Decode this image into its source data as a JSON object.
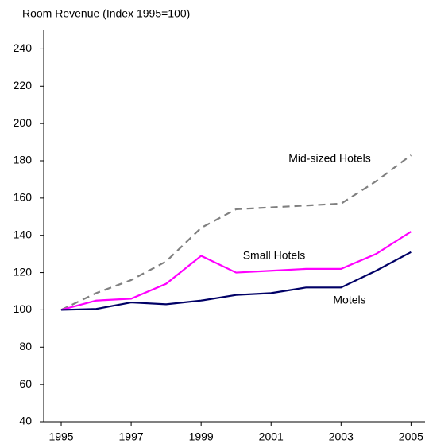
{
  "chart_data": {
    "type": "line",
    "title": "Room Revenue (Index 1995=100)",
    "x": [
      1995,
      1996,
      1997,
      1998,
      1999,
      2000,
      2001,
      2002,
      2003,
      2004,
      2005
    ],
    "series": [
      {
        "name": "Mid-sized Hotels",
        "color": "#808080",
        "dash": true,
        "values": [
          100,
          109,
          116,
          126,
          144,
          154,
          155,
          156,
          157,
          169,
          183
        ]
      },
      {
        "name": "Small Hotels",
        "color": "#ff00ff",
        "dash": false,
        "values": [
          100,
          105,
          106,
          114,
          129,
          120,
          121,
          122,
          122,
          130,
          142
        ]
      },
      {
        "name": "Motels",
        "color": "#000066",
        "dash": false,
        "values": [
          100,
          100.5,
          104,
          103,
          105,
          108,
          109,
          112,
          112,
          121,
          131
        ]
      }
    ],
    "xlim": [
      1994.5,
      2005.4
    ],
    "xticks": [
      1995,
      1997,
      1999,
      2001,
      2003,
      2005
    ],
    "ylim": [
      40,
      250
    ],
    "yticks": [
      40,
      60,
      80,
      100,
      120,
      140,
      160,
      180,
      200,
      220,
      240
    ],
    "grid": false
  }
}
